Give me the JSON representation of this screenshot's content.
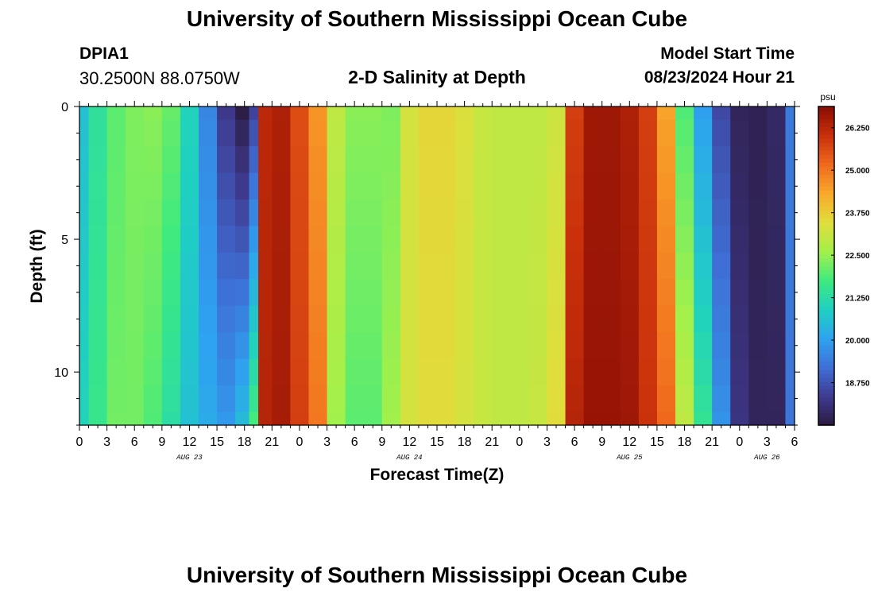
{
  "header": {
    "title": "University of Southern Mississippi Ocean Cube",
    "station": "DPIA1",
    "coords": "30.2500N  88.0750W",
    "subtitle": "2-D Salinity at Depth",
    "model_start_label": "Model Start Time",
    "model_start_value": "08/23/2024 Hour 21"
  },
  "footer": {
    "title": "University of Southern Mississippi Ocean Cube"
  },
  "chart_data": {
    "type": "heatmap",
    "title": "2-D Salinity at Depth",
    "xlabel": "Forecast Time(Z)",
    "ylabel": "Depth (ft)",
    "x_tick_labels": [
      "0",
      "3",
      "6",
      "9",
      "12",
      "15",
      "18",
      "21",
      "0",
      "3",
      "6",
      "9",
      "12",
      "15",
      "18",
      "21",
      "0",
      "3",
      "6",
      "9",
      "12",
      "15",
      "18",
      "21",
      "0",
      "3",
      "6"
    ],
    "x_tick_hours": [
      0,
      3,
      6,
      9,
      12,
      15,
      18,
      21,
      24,
      27,
      30,
      33,
      36,
      39,
      42,
      45,
      48,
      51,
      54,
      57,
      60,
      63,
      66,
      69,
      72,
      75,
      78
    ],
    "date_labels": [
      {
        "text": "AUG 23",
        "hour": 12
      },
      {
        "text": "AUG 24",
        "hour": 36
      },
      {
        "text": "AUG 25",
        "hour": 60
      },
      {
        "text": "AUG 26",
        "hour": 75
      }
    ],
    "xlim": [
      0,
      78
    ],
    "y_tick_labels": [
      "0",
      "5",
      "10"
    ],
    "y_tick_values": [
      0,
      5,
      10
    ],
    "ylim": [
      0,
      12
    ],
    "y_inverted": true,
    "colorbar": {
      "unit": "psu",
      "range": [
        17.5,
        26.875
      ],
      "tick_labels": [
        "26.250",
        "25.000",
        "23.750",
        "22.500",
        "21.250",
        "20.000",
        "18.750"
      ],
      "tick_values": [
        26.25,
        25.0,
        23.75,
        22.5,
        21.25,
        20.0,
        18.75
      ],
      "colors": [
        "#2b1a3f",
        "#3f3a8f",
        "#3f6fd6",
        "#2ea3f0",
        "#1fd0c2",
        "#3eea7f",
        "#a4f04a",
        "#e0de3c",
        "#f9a92b",
        "#f06a1d",
        "#c9300b",
        "#8a0d04"
      ]
    },
    "depths_ft": [
      0,
      1,
      2,
      3,
      4,
      5,
      6,
      7,
      8,
      9,
      10,
      11,
      12
    ],
    "hours": [
      0,
      2,
      4,
      6,
      8,
      10,
      12,
      14,
      16,
      18,
      19,
      20,
      22,
      24,
      26,
      28,
      30,
      32,
      34,
      36,
      38,
      40,
      42,
      44,
      46,
      48,
      50,
      52,
      54,
      56,
      58,
      60,
      62,
      64,
      66,
      68,
      70,
      72,
      74,
      76,
      78
    ],
    "salinity_top": [
      20.6,
      21.4,
      22.0,
      22.3,
      22.4,
      22.1,
      21.0,
      19.6,
      18.3,
      17.6,
      18.5,
      26.2,
      26.4,
      25.6,
      24.6,
      23.0,
      22.4,
      22.4,
      22.3,
      23.3,
      23.6,
      23.6,
      23.4,
      23.1,
      23.0,
      23.0,
      23.0,
      23.2,
      25.8,
      26.6,
      26.6,
      26.4,
      25.8,
      24.4,
      21.9,
      20.0,
      18.6,
      17.8,
      17.7,
      17.9,
      19.4
    ],
    "salinity_bottom": [
      21.0,
      21.6,
      22.2,
      22.2,
      21.9,
      21.3,
      20.6,
      20.2,
      19.9,
      20.5,
      21.8,
      26.3,
      26.5,
      25.8,
      25.0,
      22.6,
      22.0,
      22.0,
      22.6,
      23.3,
      23.5,
      23.5,
      23.3,
      23.1,
      23.0,
      23.0,
      23.1,
      23.5,
      26.3,
      26.7,
      26.7,
      26.6,
      26.0,
      25.2,
      23.0,
      21.5,
      19.8,
      18.2,
      17.8,
      17.8,
      19.3
    ]
  }
}
